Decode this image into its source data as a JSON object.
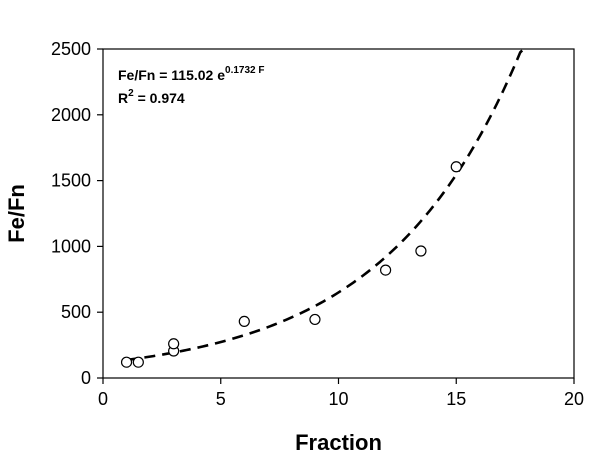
{
  "chart_data": {
    "type": "scatter",
    "xlabel": "Fraction",
    "ylabel": "Fe/Fn",
    "xlim": [
      0,
      20
    ],
    "ylim": [
      0,
      2500
    ],
    "x_ticks": [
      "0",
      "5",
      "10",
      "15",
      "20"
    ],
    "y_ticks": [
      "0",
      "500",
      "1000",
      "1500",
      "2000",
      "2500"
    ],
    "grid": false,
    "legend": "none",
    "points": [
      {
        "x": 1,
        "y": 120
      },
      {
        "x": 1.5,
        "y": 120
      },
      {
        "x": 3,
        "y": 205
      },
      {
        "x": 3,
        "y": 260
      },
      {
        "x": 6,
        "y": 430
      },
      {
        "x": 9,
        "y": 445
      },
      {
        "x": 12,
        "y": 820
      },
      {
        "x": 13.5,
        "y": 965
      },
      {
        "x": 15,
        "y": 1605
      }
    ],
    "fit": {
      "type": "exponential",
      "a": 115.02,
      "b": 0.1732,
      "x_range": [
        1,
        18
      ],
      "style": "dashed"
    },
    "annotations": {
      "equation_main": "Fe/Fn = 115.02 e",
      "equation_exponent": "0.1732 F",
      "r2_prefix": "R",
      "r2_sup": "2",
      "r2_value": " = 0.974"
    }
  }
}
